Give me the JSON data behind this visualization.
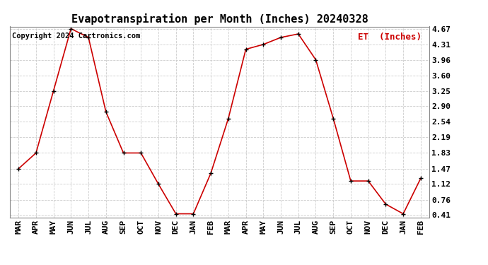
{
  "title": "Evapotranspiration per Month (Inches) 20240328",
  "legend_label": "ET  (Inches)",
  "copyright": "Copyright 2024 Cartronics.com",
  "months": [
    "MAR",
    "APR",
    "MAY",
    "JUN",
    "JUL",
    "AUG",
    "SEP",
    "OCT",
    "NOV",
    "DEC",
    "JAN",
    "FEB",
    "MAR",
    "APR",
    "MAY",
    "JUN",
    "JUL",
    "AUG",
    "SEP",
    "OCT",
    "NOV",
    "DEC",
    "JAN",
    "FEB"
  ],
  "values": [
    1.47,
    1.83,
    3.25,
    4.67,
    4.47,
    2.77,
    1.83,
    1.83,
    1.12,
    0.44,
    0.44,
    1.37,
    2.62,
    4.2,
    4.31,
    4.47,
    4.55,
    3.96,
    2.62,
    1.19,
    1.19,
    0.66,
    0.44,
    1.25
  ],
  "ylim_min": 0.41,
  "ylim_max": 4.67,
  "yticks": [
    0.41,
    0.76,
    1.12,
    1.47,
    1.83,
    2.19,
    2.54,
    2.9,
    3.25,
    3.6,
    3.96,
    4.31,
    4.67
  ],
  "line_color": "#cc0000",
  "marker_color": "#000000",
  "grid_color": "#cccccc",
  "background_color": "#ffffff",
  "title_fontsize": 11,
  "tick_fontsize": 8,
  "legend_color": "#cc0000",
  "copyright_color": "#000000",
  "copyright_fontsize": 7.5
}
